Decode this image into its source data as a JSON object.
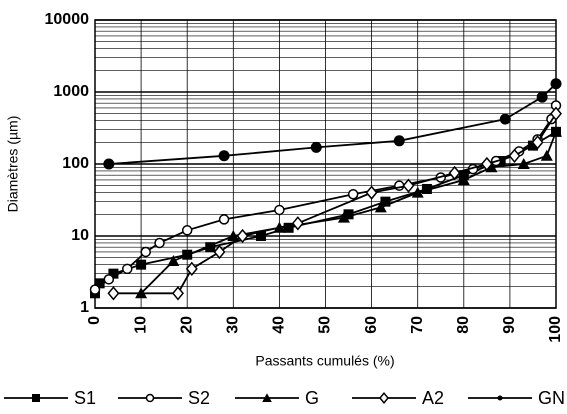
{
  "chart_data": {
    "type": "line",
    "xlabel": "Passants cumulés (%)",
    "ylabel": "Diamètres (µm)",
    "xlim": [
      0,
      100
    ],
    "xticks": [
      0,
      10,
      20,
      30,
      40,
      50,
      60,
      70,
      80,
      90,
      100
    ],
    "ylim": [
      1,
      10000
    ],
    "yticks": [
      1,
      10,
      100,
      1000,
      10000
    ],
    "log_y": true,
    "grid": true,
    "legend": "bottom",
    "series": [
      {
        "name": "S1",
        "color": "#000",
        "marker": "square",
        "x": [
          0,
          1,
          4,
          10,
          20,
          25,
          36,
          42,
          55,
          63,
          72,
          80,
          88,
          95,
          100
        ],
        "values": [
          1.6,
          2.2,
          3,
          4,
          5.5,
          7,
          10,
          13,
          20,
          30,
          45,
          70,
          110,
          180,
          280
        ]
      },
      {
        "name": "S2",
        "color": "#000",
        "marker": "circle",
        "x": [
          0,
          3,
          7,
          11,
          14,
          20,
          28,
          40,
          56,
          66,
          75,
          82,
          87,
          92,
          96,
          99,
          100
        ],
        "values": [
          1.8,
          2.5,
          3.5,
          6,
          8,
          12,
          17,
          23,
          38,
          50,
          65,
          85,
          110,
          150,
          220,
          420,
          650
        ]
      },
      {
        "name": "G",
        "color": "#000",
        "marker": "triangle",
        "x": [
          10,
          17,
          30,
          40,
          54,
          62,
          70,
          80,
          86,
          93,
          98,
          100
        ],
        "values": [
          1.6,
          4.5,
          10,
          13,
          18,
          25,
          40,
          60,
          90,
          100,
          130,
          280
        ]
      },
      {
        "name": "A2",
        "color": "#000",
        "marker": "diamond",
        "x": [
          4,
          18,
          21,
          27,
          32,
          44,
          60,
          68,
          78,
          85,
          91,
          96,
          100
        ],
        "values": [
          1.6,
          1.6,
          3.5,
          6,
          10,
          15,
          40,
          50,
          75,
          100,
          130,
          200,
          500
        ]
      },
      {
        "name": "GN",
        "color": "#000",
        "marker": "dot",
        "x": [
          3,
          28,
          48,
          66,
          89,
          97,
          100
        ],
        "values": [
          100,
          130,
          170,
          210,
          420,
          850,
          1300
        ]
      }
    ]
  }
}
